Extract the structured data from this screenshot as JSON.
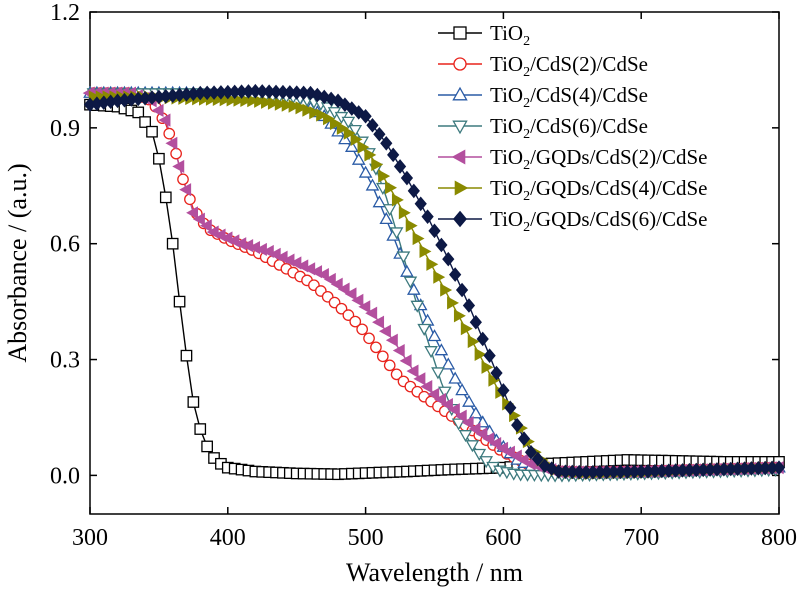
{
  "chart_data": {
    "type": "line",
    "title": "",
    "xlabel": "Wavelength / nm",
    "ylabel": "Absorbance / (a.u.)",
    "xlim": [
      300,
      800
    ],
    "ylim": [
      -0.1,
      1.2
    ],
    "xticks": [
      "300",
      "400",
      "500",
      "600",
      "700",
      "800"
    ],
    "yticks": [
      "0.0",
      "0.3",
      "0.6",
      "0.9",
      "1.2"
    ],
    "grid": false,
    "legend_position": "top-right",
    "series": [
      {
        "name": "TiO2",
        "legend": {
          "base": "TiO",
          "sub": "2",
          "rest": ""
        },
        "color": "#000000",
        "marker": "square",
        "points": [
          [
            300,
            0.96
          ],
          [
            320,
            0.955
          ],
          [
            335,
            0.94
          ],
          [
            345,
            0.89
          ],
          [
            350,
            0.82
          ],
          [
            355,
            0.72
          ],
          [
            360,
            0.6
          ],
          [
            365,
            0.45
          ],
          [
            370,
            0.31
          ],
          [
            375,
            0.19
          ],
          [
            380,
            0.12
          ],
          [
            385,
            0.075
          ],
          [
            390,
            0.045
          ],
          [
            395,
            0.03
          ],
          [
            400,
            0.02
          ],
          [
            420,
            0.01
          ],
          [
            450,
            0.005
          ],
          [
            480,
            0.003
          ],
          [
            500,
            0.006
          ],
          [
            530,
            0.01
          ],
          [
            560,
            0.015
          ],
          [
            600,
            0.02
          ],
          [
            630,
            0.03
          ],
          [
            660,
            0.035
          ],
          [
            690,
            0.04
          ],
          [
            720,
            0.038
          ],
          [
            760,
            0.035
          ],
          [
            800,
            0.035
          ]
        ]
      },
      {
        "name": "TiO2/CdS(2)/CdSe",
        "legend": {
          "base": "TiO",
          "sub": "2",
          "rest": "/CdS(2)/CdSe"
        },
        "color": "#e8231c",
        "marker": "circle",
        "points": [
          [
            300,
            0.99
          ],
          [
            330,
            0.99
          ],
          [
            345,
            0.97
          ],
          [
            355,
            0.91
          ],
          [
            362,
            0.84
          ],
          [
            368,
            0.76
          ],
          [
            375,
            0.69
          ],
          [
            385,
            0.64
          ],
          [
            400,
            0.61
          ],
          [
            420,
            0.58
          ],
          [
            440,
            0.54
          ],
          [
            460,
            0.5
          ],
          [
            480,
            0.44
          ],
          [
            495,
            0.39
          ],
          [
            510,
            0.32
          ],
          [
            525,
            0.25
          ],
          [
            540,
            0.21
          ],
          [
            560,
            0.16
          ],
          [
            580,
            0.11
          ],
          [
            600,
            0.06
          ],
          [
            620,
            0.025
          ],
          [
            640,
            0.01
          ],
          [
            660,
            0.008
          ],
          [
            700,
            0.01
          ],
          [
            750,
            0.015
          ],
          [
            800,
            0.02
          ]
        ]
      },
      {
        "name": "TiO2/CdS(4)/CdSe",
        "legend": {
          "base": "TiO",
          "sub": "2",
          "rest": "/CdS(4)/CdSe"
        },
        "color": "#2a5ba6",
        "marker": "triangle-up",
        "points": [
          [
            300,
            0.99
          ],
          [
            340,
            0.99
          ],
          [
            380,
            0.99
          ],
          [
            420,
            0.985
          ],
          [
            450,
            0.97
          ],
          [
            470,
            0.93
          ],
          [
            490,
            0.85
          ],
          [
            505,
            0.75
          ],
          [
            520,
            0.62
          ],
          [
            535,
            0.48
          ],
          [
            550,
            0.36
          ],
          [
            565,
            0.25
          ],
          [
            580,
            0.16
          ],
          [
            595,
            0.09
          ],
          [
            610,
            0.04
          ],
          [
            625,
            0.015
          ],
          [
            640,
            0.005
          ],
          [
            660,
            0.003
          ],
          [
            700,
            0.006
          ],
          [
            750,
            0.012
          ],
          [
            800,
            0.02
          ]
        ]
      },
      {
        "name": "TiO2/CdS(6)/CdSe",
        "legend": {
          "base": "TiO",
          "sub": "2",
          "rest": "/CdS(6)/CdSe"
        },
        "color": "#3d7a7e",
        "marker": "triangle-down",
        "points": [
          [
            300,
            0.99
          ],
          [
            340,
            0.99
          ],
          [
            380,
            0.99
          ],
          [
            420,
            0.985
          ],
          [
            450,
            0.98
          ],
          [
            470,
            0.96
          ],
          [
            490,
            0.91
          ],
          [
            505,
            0.82
          ],
          [
            515,
            0.72
          ],
          [
            525,
            0.6
          ],
          [
            535,
            0.47
          ],
          [
            545,
            0.35
          ],
          [
            555,
            0.24
          ],
          [
            565,
            0.15
          ],
          [
            575,
            0.09
          ],
          [
            585,
            0.045
          ],
          [
            595,
            0.015
          ],
          [
            610,
            0.003
          ],
          [
            640,
            0.0
          ],
          [
            700,
            0.005
          ],
          [
            750,
            0.01
          ],
          [
            800,
            0.015
          ]
        ]
      },
      {
        "name": "TiO2/GQDs/CdS(2)/CdSe",
        "legend": {
          "base": "TiO",
          "sub": "2",
          "rest": "/GQDs/CdS(2)/CdSe"
        },
        "color": "#b34f9e",
        "marker": "triangle-left",
        "points": [
          [
            300,
            0.99
          ],
          [
            330,
            0.99
          ],
          [
            345,
            0.97
          ],
          [
            355,
            0.92
          ],
          [
            365,
            0.8
          ],
          [
            375,
            0.68
          ],
          [
            390,
            0.63
          ],
          [
            410,
            0.6
          ],
          [
            430,
            0.58
          ],
          [
            450,
            0.55
          ],
          [
            470,
            0.52
          ],
          [
            490,
            0.47
          ],
          [
            505,
            0.42
          ],
          [
            520,
            0.35
          ],
          [
            535,
            0.27
          ],
          [
            550,
            0.21
          ],
          [
            565,
            0.17
          ],
          [
            580,
            0.12
          ],
          [
            600,
            0.07
          ],
          [
            620,
            0.03
          ],
          [
            640,
            0.01
          ],
          [
            660,
            0.008
          ],
          [
            700,
            0.01
          ],
          [
            750,
            0.015
          ],
          [
            800,
            0.02
          ]
        ]
      },
      {
        "name": "TiO2/GQDs/CdS(4)/CdSe",
        "legend": {
          "base": "TiO",
          "sub": "2",
          "rest": "/GQDs/CdS(4)/CdSe"
        },
        "color": "#8a8a00",
        "marker": "triangle-right",
        "points": [
          [
            300,
            0.98
          ],
          [
            340,
            0.98
          ],
          [
            380,
            0.975
          ],
          [
            420,
            0.97
          ],
          [
            450,
            0.955
          ],
          [
            470,
            0.93
          ],
          [
            490,
            0.88
          ],
          [
            505,
            0.82
          ],
          [
            520,
            0.73
          ],
          [
            535,
            0.63
          ],
          [
            550,
            0.53
          ],
          [
            565,
            0.43
          ],
          [
            580,
            0.33
          ],
          [
            595,
            0.23
          ],
          [
            610,
            0.14
          ],
          [
            620,
            0.07
          ],
          [
            630,
            0.03
          ],
          [
            640,
            0.01
          ],
          [
            660,
            0.005
          ],
          [
            700,
            0.008
          ],
          [
            750,
            0.015
          ],
          [
            800,
            0.02
          ]
        ]
      },
      {
        "name": "TiO2/GQDs/CdS(6)/CdSe",
        "legend": {
          "base": "TiO",
          "sub": "2",
          "rest": "/GQDs/CdS(6)/CdSe"
        },
        "color": "#0d1945",
        "marker": "diamond",
        "points": [
          [
            300,
            0.96
          ],
          [
            320,
            0.97
          ],
          [
            350,
            0.98
          ],
          [
            380,
            0.99
          ],
          [
            420,
            0.995
          ],
          [
            460,
            0.99
          ],
          [
            480,
            0.97
          ],
          [
            500,
            0.93
          ],
          [
            515,
            0.86
          ],
          [
            530,
            0.77
          ],
          [
            545,
            0.67
          ],
          [
            560,
            0.56
          ],
          [
            575,
            0.44
          ],
          [
            590,
            0.31
          ],
          [
            600,
            0.22
          ],
          [
            610,
            0.13
          ],
          [
            620,
            0.06
          ],
          [
            630,
            0.025
          ],
          [
            640,
            0.01
          ],
          [
            660,
            0.008
          ],
          [
            700,
            0.01
          ],
          [
            750,
            0.015
          ],
          [
            800,
            0.02
          ]
        ]
      }
    ]
  }
}
